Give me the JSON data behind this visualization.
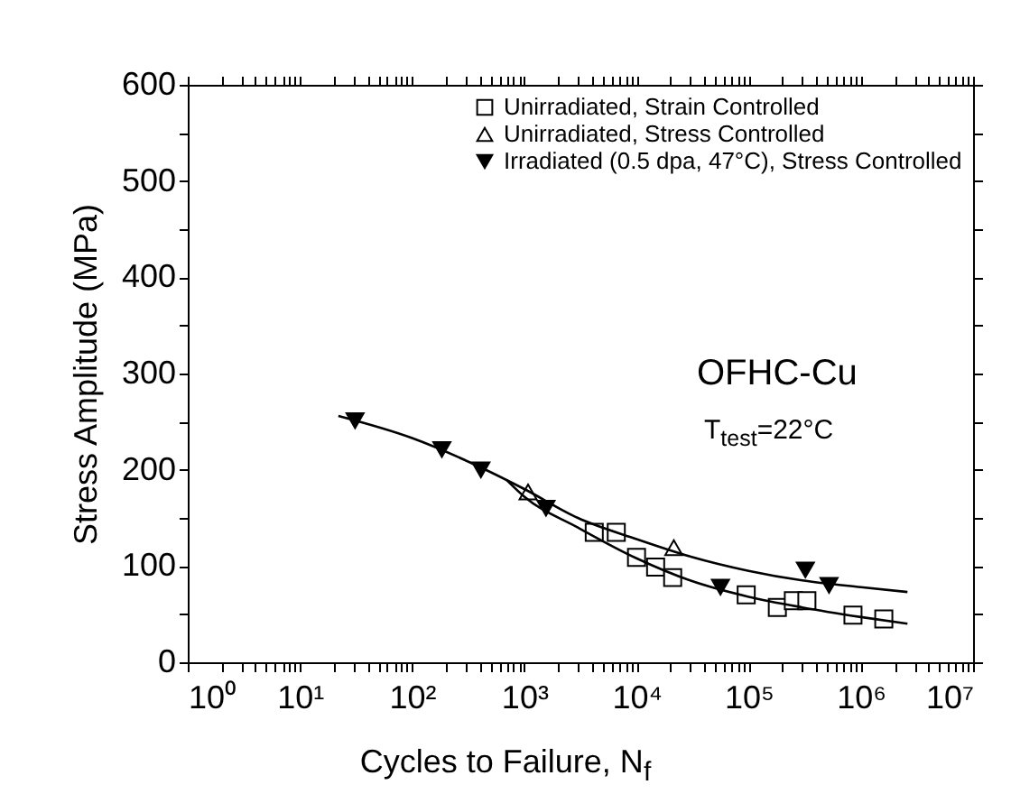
{
  "chart_data": {
    "type": "scatter",
    "xlabel": "Cycles to Failure, N$_{f}$",
    "ylabel": "Stress Amplitude (MPa)",
    "log": "x",
    "legend": "top right",
    "grid": false,
    "xlim": [
      1,
      10000000
    ],
    "ylim": [
      0,
      600
    ],
    "xticks": [
      {
        "value": 1,
        "label": "10⁰"
      },
      {
        "value": 2,
        "label": null
      },
      {
        "value": 3,
        "label": null
      },
      {
        "value": 4,
        "label": null
      },
      {
        "value": 5,
        "label": null
      },
      {
        "value": 6,
        "label": null
      },
      {
        "value": 7,
        "label": null
      },
      {
        "value": 8,
        "label": null
      },
      {
        "value": 9,
        "label": null
      },
      {
        "value": 10,
        "label": "10¹"
      },
      {
        "value": 20,
        "label": null
      },
      {
        "value": 30,
        "label": null
      },
      {
        "value": 40,
        "label": null
      },
      {
        "value": 50,
        "label": null
      },
      {
        "value": 60,
        "label": null
      },
      {
        "value": 70,
        "label": null
      },
      {
        "value": 80,
        "label": null
      },
      {
        "value": 90,
        "label": null
      },
      {
        "value": 100,
        "label": "10²"
      },
      {
        "value": 200,
        "label": null
      },
      {
        "value": 300,
        "label": null
      },
      {
        "value": 400,
        "label": null
      },
      {
        "value": 500,
        "label": null
      },
      {
        "value": 600,
        "label": null
      },
      {
        "value": 700,
        "label": null
      },
      {
        "value": 800,
        "label": null
      },
      {
        "value": 900,
        "label": null
      },
      {
        "value": 1000,
        "label": "10³"
      },
      {
        "value": 2000,
        "label": null
      },
      {
        "value": 3000,
        "label": null
      },
      {
        "value": 4000,
        "label": null
      },
      {
        "value": 5000,
        "label": null
      },
      {
        "value": 6000,
        "label": null
      },
      {
        "value": 7000,
        "label": null
      },
      {
        "value": 8000,
        "label": null
      },
      {
        "value": 9000,
        "label": null
      },
      {
        "value": 10000,
        "label": "10⁴"
      },
      {
        "value": 20000,
        "label": null
      },
      {
        "value": 30000,
        "label": null
      },
      {
        "value": 40000,
        "label": null
      },
      {
        "value": 50000,
        "label": null
      },
      {
        "value": 60000,
        "label": null
      },
      {
        "value": 70000,
        "label": null
      },
      {
        "value": 80000,
        "label": null
      },
      {
        "value": 90000,
        "label": null
      },
      {
        "value": 100000,
        "label": "10⁵"
      },
      {
        "value": 200000,
        "label": null
      },
      {
        "value": 300000,
        "label": null
      },
      {
        "value": 400000,
        "label": null
      },
      {
        "value": 500000,
        "label": null
      },
      {
        "value": 600000,
        "label": null
      },
      {
        "value": 700000,
        "label": null
      },
      {
        "value": 800000,
        "label": null
      },
      {
        "value": 900000,
        "label": null
      },
      {
        "value": 1000000,
        "label": "10⁶"
      },
      {
        "value": 2000000,
        "label": null
      },
      {
        "value": 3000000,
        "label": null
      },
      {
        "value": 4000000,
        "label": null
      },
      {
        "value": 5000000,
        "label": null
      },
      {
        "value": 6000000,
        "label": null
      },
      {
        "value": 7000000,
        "label": null
      },
      {
        "value": 8000000,
        "label": null
      },
      {
        "value": 9000000,
        "label": null
      },
      {
        "value": 10000000,
        "label": "10⁷"
      }
    ],
    "yticks": [
      0,
      {
        "value": 50,
        "label": null
      },
      100,
      {
        "value": 150,
        "label": null
      },
      200,
      {
        "value": 250,
        "label": null
      },
      300,
      {
        "value": 350,
        "label": null
      },
      400,
      {
        "value": 450,
        "label": null
      },
      500,
      {
        "value": 550,
        "label": null
      },
      600
    ],
    "annotations": [
      "OFHC-Cu",
      "T$_{test}$=22°C"
    ],
    "series": [
      {
        "name": "Unirradiated, Strain Controlled",
        "color": "#000000",
        "marker": "square",
        "x": [
          4200,
          6600,
          10000,
          14800,
          21000,
          95000,
          180000,
          250000,
          330000,
          850000,
          1600000
        ],
        "values": [
          135,
          135,
          109,
          99,
          88,
          70,
          57,
          64,
          64,
          49,
          45
        ]
      },
      {
        "name": "Unirradiated, Stress Controlled",
        "color": "#000000",
        "marker": "triangle",
        "x": [
          1080,
          21500
        ],
        "values": [
          177,
          119
        ]
      },
      {
        "name": "Irradiated (0.5 dpa, 47°C), Stress Controlled",
        "color": "#000000",
        "marker": "triangle-down",
        "x": [
          31,
          184,
          410,
          1560,
          56000,
          320000,
          520000
        ],
        "values": [
          251,
          221,
          200,
          160,
          78,
          96,
          80
        ]
      },
      {
        "type": "line",
        "color": "#000000",
        "marker": "none",
        "x": [
          22,
          100,
          400,
          1000,
          3000,
          10000,
          30000,
          100000,
          300000,
          1000000,
          2600000
        ],
        "values": [
          256,
          233,
          203,
          180,
          150,
          128,
          110,
          95,
          85,
          78,
          73
        ]
      },
      {
        "type": "line",
        "color": "#000000",
        "marker": "none",
        "x": [
          700,
          1000,
          3000,
          10000,
          30000,
          100000,
          300000,
          1000000,
          2600000
        ],
        "values": [
          189,
          172,
          140,
          108,
          85,
          68,
          57,
          47,
          40
        ]
      }
    ]
  }
}
